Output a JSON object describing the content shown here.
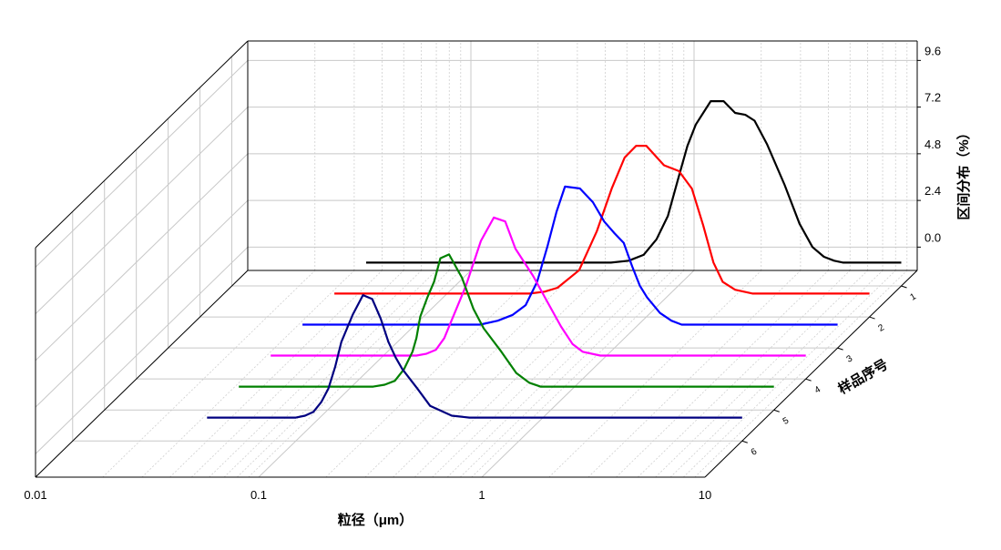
{
  "chart_data": {
    "type": "line",
    "title": "",
    "xlabel": "粒径（μm）",
    "ylabel": "区间分布（%）",
    "zlabel": "样品序号",
    "x_scale": "log",
    "xlim": [
      0.01,
      10
    ],
    "x_ticks": [
      "0.01",
      "0.1",
      "1",
      "10"
    ],
    "ylim": [
      -1.2,
      10.6
    ],
    "y_ticks": [
      "0.0",
      "2.4",
      "4.8",
      "7.2",
      "9.6"
    ],
    "z_ticks": [
      "1",
      "2",
      "3",
      "4",
      "5",
      "6"
    ],
    "grid": true,
    "series": [
      {
        "color": "#000000",
        "x": [
          0.04,
          0.05,
          0.06,
          0.07,
          0.08,
          0.09,
          0.1,
          0.12,
          0.14,
          0.16,
          0.18,
          0.2,
          0.22,
          0.24,
          0.25,
          0.3,
          0.4,
          0.5,
          0.6,
          0.7,
          0.8,
          0.9,
          1.0,
          1.1,
          1.2,
          1.4,
          1.6,
          1.8,
          2.0,
          2.2,
          2.5,
          3.0,
          3.5,
          4.0,
          4.5,
          5.0,
          5.5,
          6.0,
          7.0,
          8.0,
          9.0,
          10.0
        ],
        "y": [
          0,
          0,
          0,
          0,
          0,
          0,
          0,
          0,
          0,
          0,
          0,
          0,
          0,
          0,
          0,
          0,
          0,
          0,
          0.1,
          0.4,
          1.2,
          2.4,
          4.3,
          6.0,
          7.1,
          8.3,
          8.3,
          7.7,
          7.6,
          7.3,
          6.1,
          4.0,
          2.0,
          0.8,
          0.3,
          0.1,
          0,
          0,
          0,
          0,
          0,
          0
        ]
      },
      {
        "color": "#ff0000",
        "x": [
          0.04,
          0.05,
          0.06,
          0.07,
          0.08,
          0.09,
          0.1,
          0.12,
          0.14,
          0.16,
          0.18,
          0.2,
          0.22,
          0.24,
          0.25,
          0.3,
          0.35,
          0.4,
          0.5,
          0.6,
          0.7,
          0.8,
          0.9,
          1.0,
          1.2,
          1.4,
          1.6,
          1.8,
          2.0,
          2.2,
          2.5,
          3.0,
          3.5,
          4.0,
          4.5,
          5.0,
          6.0,
          7.0,
          8.0,
          9.0,
          10.0
        ],
        "y": [
          0,
          0,
          0,
          0,
          0,
          0,
          0,
          0,
          0,
          0,
          0,
          0,
          0,
          0,
          0,
          0,
          0.1,
          0.3,
          1.2,
          3.2,
          5.4,
          7.0,
          7.6,
          7.6,
          6.6,
          6.3,
          5.4,
          3.5,
          1.6,
          0.6,
          0.2,
          0,
          0,
          0,
          0,
          0,
          0,
          0,
          0,
          0,
          0
        ]
      },
      {
        "color": "#0000ff",
        "x": [
          0.04,
          0.05,
          0.06,
          0.07,
          0.08,
          0.09,
          0.1,
          0.12,
          0.14,
          0.16,
          0.18,
          0.2,
          0.22,
          0.24,
          0.25,
          0.3,
          0.35,
          0.4,
          0.45,
          0.5,
          0.55,
          0.6,
          0.7,
          0.8,
          0.9,
          1.0,
          1.1,
          1.2,
          1.3,
          1.4,
          1.6,
          1.8,
          2.0,
          2.5,
          3.0,
          4.0,
          5.0,
          6.0,
          7.0,
          8.0,
          9.0,
          10.0
        ],
        "y": [
          0,
          0,
          0,
          0,
          0,
          0,
          0,
          0,
          0,
          0,
          0,
          0,
          0,
          0,
          0,
          0.2,
          0.5,
          1.0,
          2.2,
          4.0,
          5.8,
          7.1,
          7.0,
          6.3,
          5.3,
          4.7,
          4.2,
          3.0,
          2.0,
          1.4,
          0.6,
          0.2,
          0,
          0,
          0,
          0,
          0,
          0,
          0,
          0,
          0,
          0
        ]
      },
      {
        "color": "#ff00ff",
        "x": [
          0.04,
          0.05,
          0.06,
          0.07,
          0.08,
          0.09,
          0.1,
          0.12,
          0.14,
          0.16,
          0.18,
          0.2,
          0.22,
          0.24,
          0.25,
          0.3,
          0.35,
          0.4,
          0.45,
          0.5,
          0.6,
          0.7,
          0.8,
          0.9,
          1.0,
          1.2,
          1.4,
          1.6,
          1.8,
          2.0,
          2.5,
          3.0,
          4.0,
          5.0,
          6.0,
          7.0,
          8.0,
          9.0,
          10.0
        ],
        "y": [
          0,
          0,
          0,
          0,
          0,
          0,
          0,
          0,
          0,
          0,
          0,
          0.1,
          0.3,
          0.9,
          1.4,
          3.6,
          5.9,
          7.1,
          6.9,
          5.5,
          4.1,
          2.7,
          1.5,
          0.6,
          0.2,
          0,
          0,
          0,
          0,
          0,
          0,
          0,
          0,
          0,
          0,
          0,
          0,
          0,
          0
        ]
      },
      {
        "color": "#008000",
        "x": [
          0.04,
          0.05,
          0.06,
          0.07,
          0.08,
          0.09,
          0.1,
          0.12,
          0.14,
          0.16,
          0.18,
          0.2,
          0.22,
          0.24,
          0.25,
          0.26,
          0.28,
          0.3,
          0.32,
          0.35,
          0.4,
          0.45,
          0.5,
          0.6,
          0.7,
          0.8,
          0.9,
          1.0,
          1.2,
          1.4,
          1.6,
          1.8,
          2.0,
          2.5,
          3.0,
          4.0,
          5.0,
          6.0,
          7.0,
          8.0,
          9.0,
          10.0
        ],
        "y": [
          0,
          0,
          0,
          0,
          0,
          0,
          0,
          0,
          0,
          0,
          0.1,
          0.3,
          0.9,
          1.8,
          2.5,
          3.6,
          4.6,
          5.4,
          6.6,
          6.8,
          5.6,
          4.0,
          3.0,
          1.8,
          0.7,
          0.2,
          0,
          0,
          0,
          0,
          0,
          0,
          0,
          0,
          0,
          0,
          0,
          0,
          0,
          0,
          0,
          0
        ]
      },
      {
        "color": "#000080",
        "x": [
          0.04,
          0.05,
          0.06,
          0.07,
          0.08,
          0.09,
          0.1,
          0.11,
          0.12,
          0.13,
          0.14,
          0.15,
          0.16,
          0.18,
          0.2,
          0.22,
          0.24,
          0.26,
          0.28,
          0.3,
          0.35,
          0.4,
          0.5,
          0.6,
          0.7,
          0.8,
          0.9,
          1.0,
          1.2,
          1.4,
          1.6,
          2.0,
          2.5,
          3.0,
          4.0,
          5.0,
          6.0,
          7.0,
          8.0,
          9.0,
          10.0
        ],
        "y": [
          0,
          0,
          0,
          0,
          0,
          0,
          0,
          0.1,
          0.3,
          0.8,
          1.5,
          2.6,
          3.9,
          5.3,
          6.3,
          6.1,
          5.1,
          3.9,
          3.1,
          2.5,
          1.5,
          0.6,
          0.1,
          0,
          0,
          0,
          0,
          0,
          0,
          0,
          0,
          0,
          0,
          0,
          0,
          0,
          0,
          0,
          0,
          0,
          0
        ]
      }
    ]
  }
}
